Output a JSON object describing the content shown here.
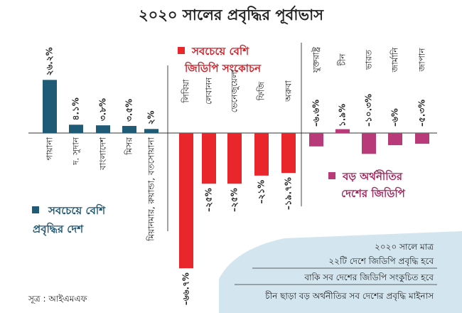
{
  "chart_data": {
    "type": "bar",
    "title": "২০২০ সালের প্রবৃদ্ধির পূর্বাভাস",
    "groups": [
      {
        "name": "সবচেয়ে বেশি প্রবৃদ্ধির দেশ",
        "color": "#1f5a76",
        "categories": [
          "গায়ানা",
          "দ. সুদান",
          "বাংলাদেশ",
          "মিসর",
          "মিয়ানমার, রুয়ান্ডা, বতসোয়ানা"
        ],
        "values": [
          26.2,
          4.1,
          3.8,
          3.5,
          2
        ],
        "labels": [
          "২৬.২%",
          "৪.১%",
          "৩.৮%",
          "৩.৫%",
          "২%"
        ]
      },
      {
        "name": "সবচেয়ে বেশি জিডিপি সংকোচন",
        "color": "#e8262c",
        "categories": [
          "লিবিয়া",
          "লেবানন",
          "ভেনেজুয়েলা",
          "ফিজি",
          "অরুবা"
        ],
        "values": [
          -66.7,
          -25,
          -25,
          -21,
          -19.7
        ],
        "labels": [
          "–৬৬.৭%",
          "–২৫%",
          "–২৫%",
          "–২১%",
          "–১৯.৭%"
        ]
      },
      {
        "name": "বড় অর্থনীতির দেশের জিডিপি",
        "color": "#b83a78",
        "categories": [
          "যুক্তরাষ্ট্র",
          "চীন",
          "ভারত",
          "জার্মানি",
          "জাপান"
        ],
        "values": [
          -6.6,
          1.9,
          -10.3,
          -6,
          -5.3
        ],
        "labels": [
          "–৬.৬%",
          "১.৯%",
          "–১০.৩%",
          "–৬%",
          "–৫.৩%"
        ]
      }
    ],
    "notes": [
      "২০২০ সালে মাত্র",
      "২২টি দেশে জিডিপি প্রবৃদ্ধি হবে",
      "বাকি সব দেশের জিডিপি সংকুচিত হবে",
      "চীন ছাড়া বড় অর্থনীতির সব দেশের প্রবৃদ্ধি মাইনাস"
    ],
    "source": "সূত্র : আইএমএফ"
  },
  "legend": {
    "growth_line1": "সবচেয়ে বেশি",
    "growth_line2": "প্রবৃদ্ধির দেশ",
    "contraction_line1": "সবচেয়ে বেশি",
    "contraction_line2": "জিডিপি সংকোচন",
    "major_line1": "বড় অর্থনীতির",
    "major_line2": "দেশের জিডিপি"
  }
}
